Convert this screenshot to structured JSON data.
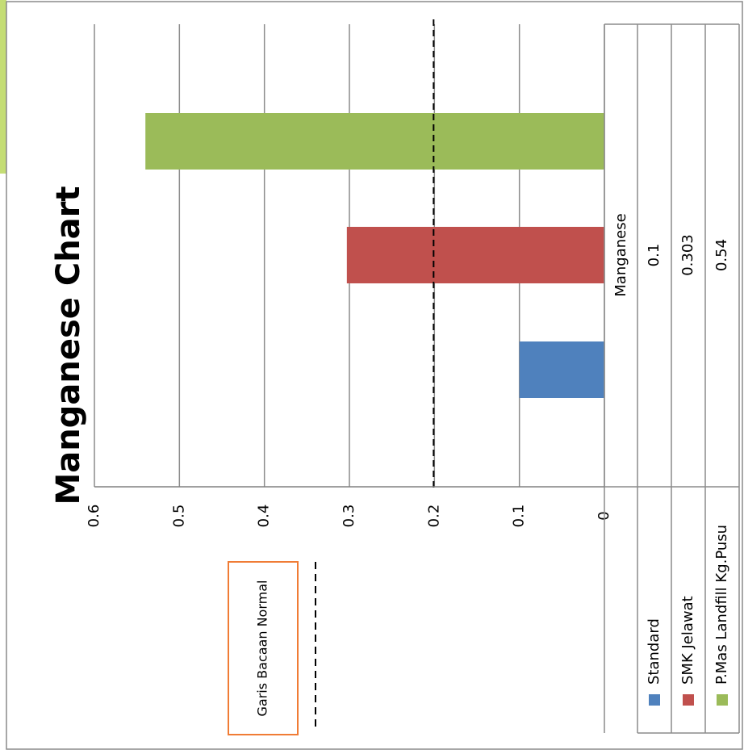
{
  "chart_data": {
    "type": "bar",
    "orientation": "rotated",
    "title": "Manganese Chart",
    "categories": [
      "Manganese"
    ],
    "series": [
      {
        "name": "Standard",
        "color": "#4f81bd",
        "values": [
          0.1
        ]
      },
      {
        "name": "SMK Jelawat",
        "color": "#c0504d",
        "values": [
          0.303
        ]
      },
      {
        "name": "P.Mas Landfill Kg.Pusu",
        "color": "#9bbb59",
        "values": [
          0.54
        ]
      }
    ],
    "ylim": [
      0,
      0.6
    ],
    "ticks": [
      "0",
      "0.1",
      "0.2",
      "0.3",
      "0.4",
      "0.5",
      "0.6"
    ],
    "table": {
      "category_label": "Manganese",
      "values": [
        "0.1",
        "0.303",
        "0.54"
      ]
    },
    "reference_line": {
      "value": 0.2,
      "style": "dashed",
      "label": "Garis Bacaan Normal"
    },
    "grid": true,
    "legend": "data-table"
  }
}
